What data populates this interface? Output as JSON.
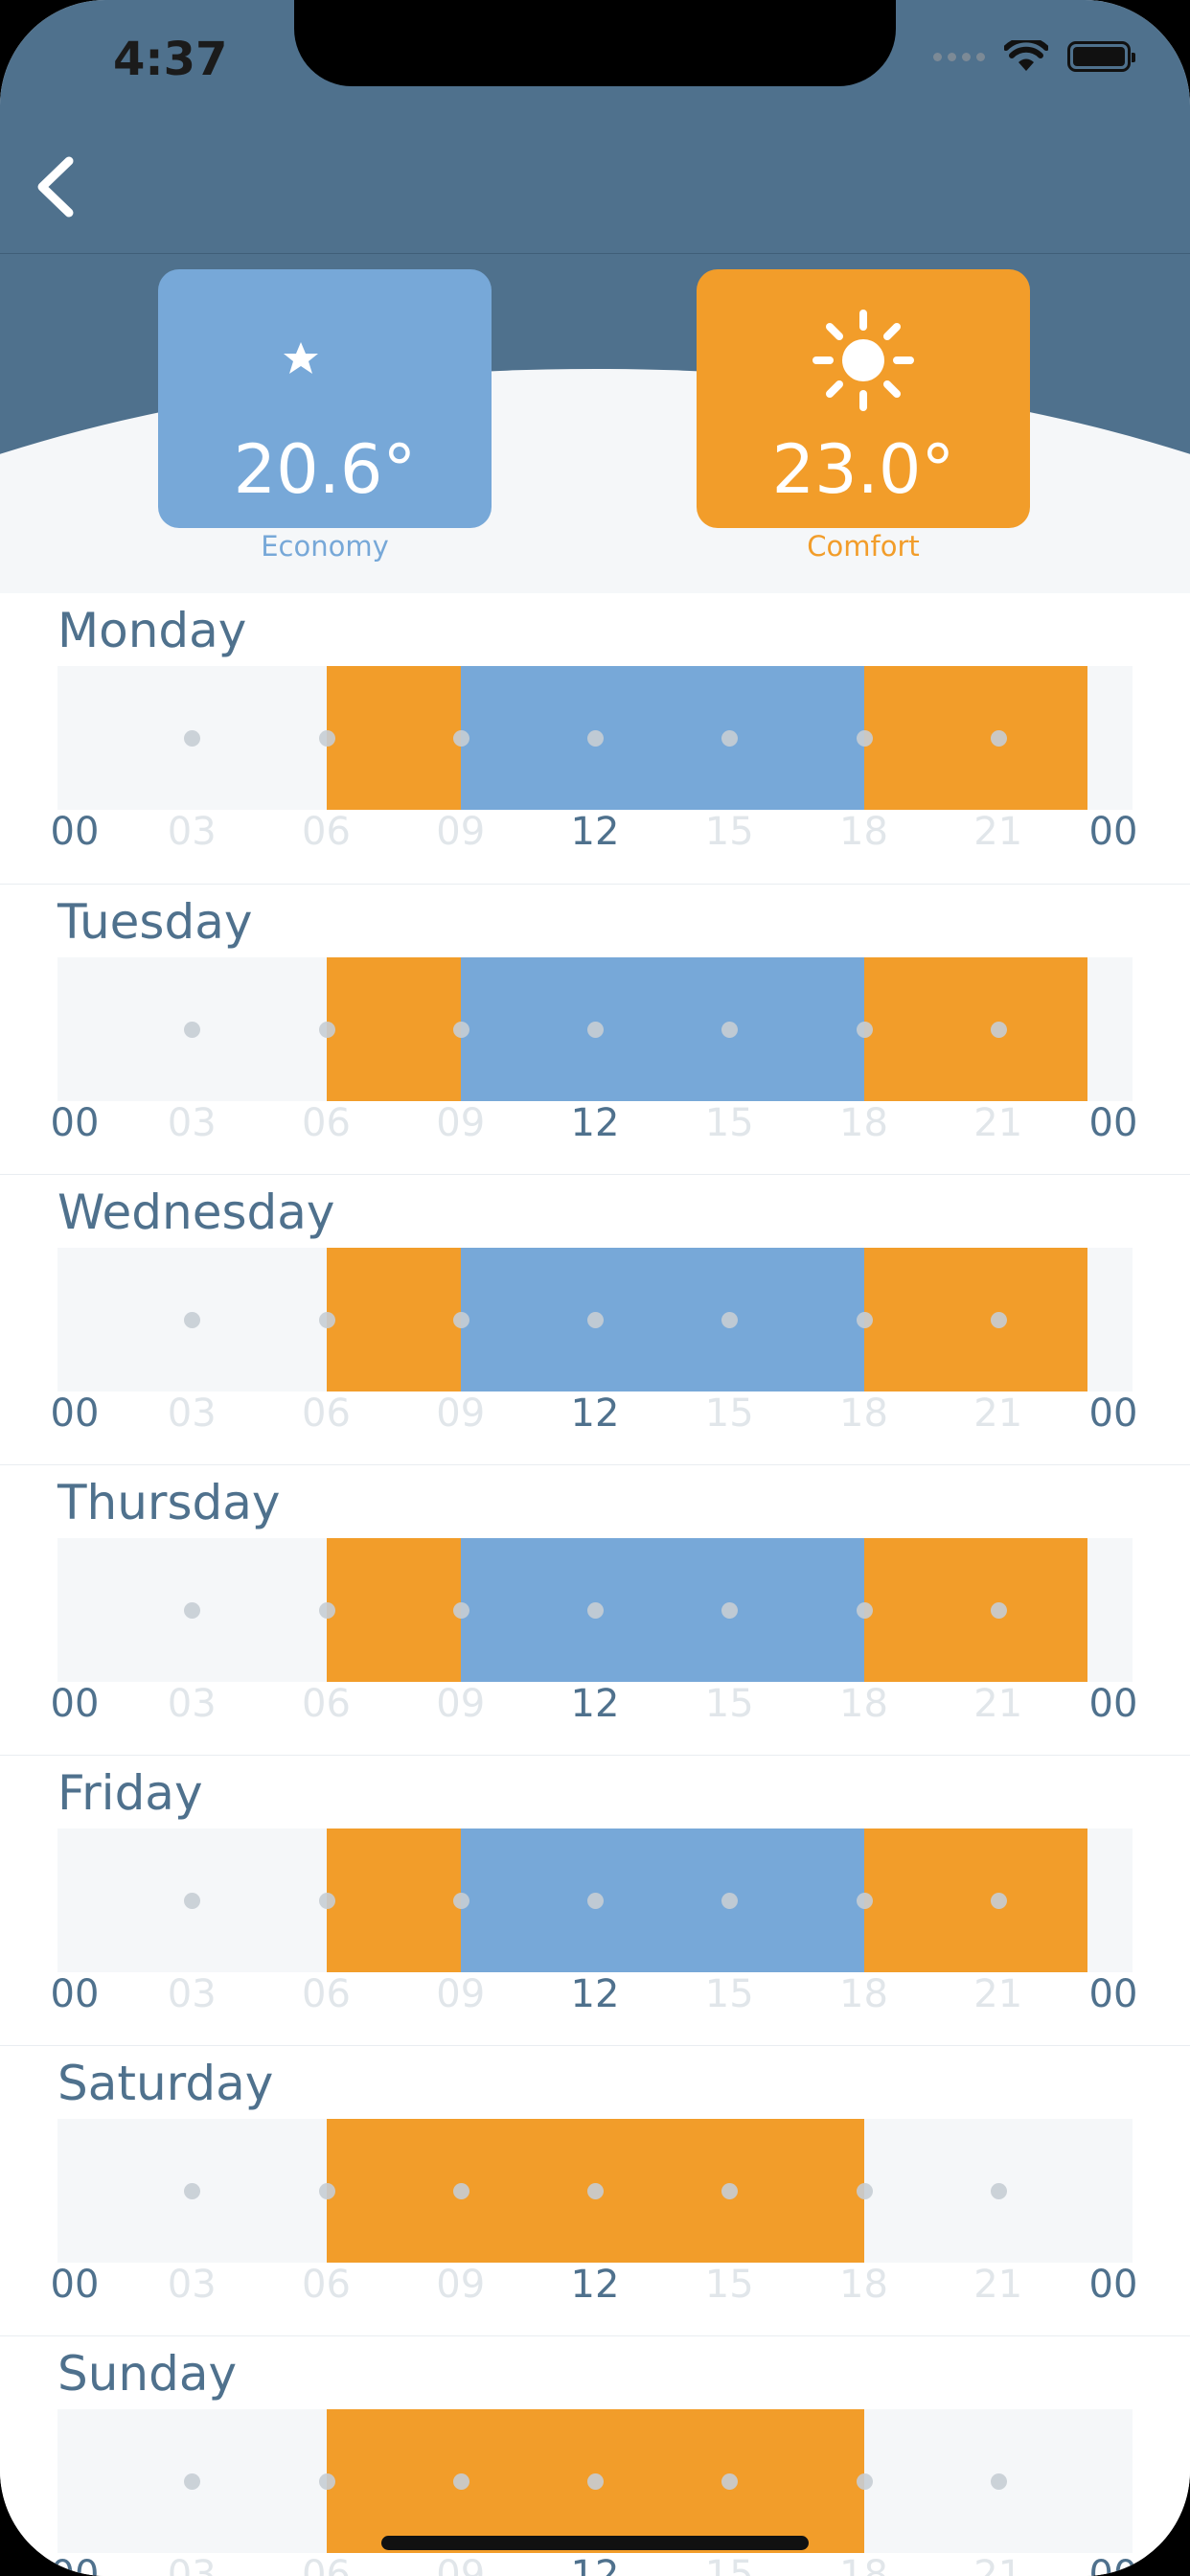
{
  "status_bar": {
    "time": "4:37"
  },
  "colors": {
    "header": "#4f718d",
    "economy": "#77a8d8",
    "comfort": "#f29d2a",
    "track": "#f5f7f9"
  },
  "modes": {
    "economy": {
      "temp": "20.6°",
      "label": "Economy",
      "icon": "moon-star-icon"
    },
    "comfort": {
      "temp": "23.0°",
      "label": "Comfort",
      "icon": "sun-icon"
    }
  },
  "hour_ticks": [
    "00",
    "03",
    "06",
    "09",
    "12",
    "15",
    "18",
    "21",
    "00"
  ],
  "strong_ticks": [
    0,
    4,
    8
  ],
  "days": [
    {
      "name": "Monday",
      "segments": [
        {
          "mode": "comfort",
          "start": 6,
          "end": 9
        },
        {
          "mode": "economy",
          "start": 9,
          "end": 18
        },
        {
          "mode": "comfort",
          "start": 18,
          "end": 23
        }
      ]
    },
    {
      "name": "Tuesday",
      "segments": [
        {
          "mode": "comfort",
          "start": 6,
          "end": 9
        },
        {
          "mode": "economy",
          "start": 9,
          "end": 18
        },
        {
          "mode": "comfort",
          "start": 18,
          "end": 23
        }
      ]
    },
    {
      "name": "Wednesday",
      "segments": [
        {
          "mode": "comfort",
          "start": 6,
          "end": 9
        },
        {
          "mode": "economy",
          "start": 9,
          "end": 18
        },
        {
          "mode": "comfort",
          "start": 18,
          "end": 23
        }
      ]
    },
    {
      "name": "Thursday",
      "segments": [
        {
          "mode": "comfort",
          "start": 6,
          "end": 9
        },
        {
          "mode": "economy",
          "start": 9,
          "end": 18
        },
        {
          "mode": "comfort",
          "start": 18,
          "end": 23
        }
      ]
    },
    {
      "name": "Friday",
      "segments": [
        {
          "mode": "comfort",
          "start": 6,
          "end": 9
        },
        {
          "mode": "economy",
          "start": 9,
          "end": 18
        },
        {
          "mode": "comfort",
          "start": 18,
          "end": 23
        }
      ]
    },
    {
      "name": "Saturday",
      "segments": [
        {
          "mode": "comfort",
          "start": 6,
          "end": 18
        }
      ]
    },
    {
      "name": "Sunday",
      "segments": [
        {
          "mode": "comfort",
          "start": 6,
          "end": 18
        }
      ]
    }
  ]
}
